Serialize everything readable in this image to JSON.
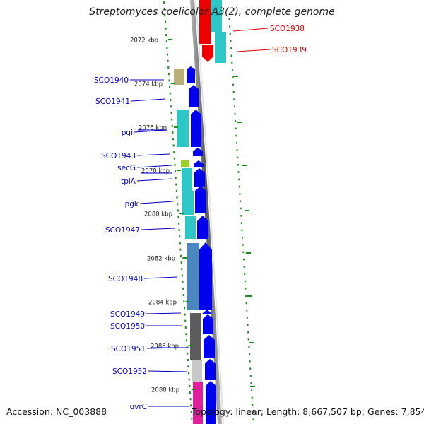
{
  "title": "Streptomyces coelicolor A3(2), complete genome",
  "footer": {
    "accession": "Accession: NC_003888",
    "topology": "Topology: linear; Length: 8,667,507 bp; Genes: 7,854"
  },
  "colors": {
    "gene_label": "#0000c8",
    "highlight_label": "#dd0000",
    "tick": "#1a8c1a",
    "backbone": "#888888"
  },
  "ruler": [
    "2072 kbp",
    "2074 kbp",
    "2076 kbp",
    "2078 kbp",
    "2080 kbp",
    "2082 kbp",
    "2084 kbp",
    "2086 kbp",
    "2088 kbp"
  ],
  "genes_left": [
    "SCO1940",
    "SCO1941",
    "pgi",
    "SCO1943",
    "secG",
    "tpiA",
    "pgk",
    "SCO1947",
    "SCO1948",
    "SCO1949",
    "SCO1950",
    "SCO1951",
    "SCO1952",
    "uvrC"
  ],
  "genes_right": [
    "SCO1938",
    "SCO1939"
  ]
}
